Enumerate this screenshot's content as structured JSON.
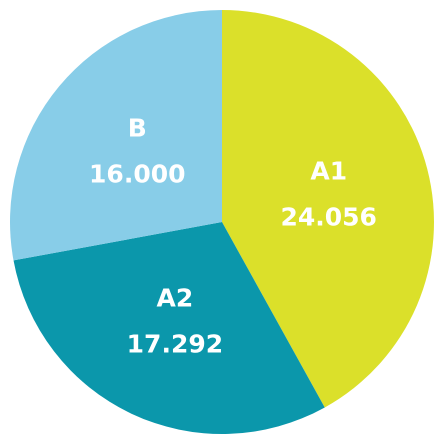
{
  "chart_data": {
    "type": "pie",
    "categories": [
      "A1",
      "A2",
      "B"
    ],
    "values": [
      24.056,
      17.292,
      16.0
    ],
    "value_labels": [
      "24.056",
      "17.292",
      "16.000"
    ],
    "colors": [
      "#dbe02a",
      "#0b97ab",
      "#88cde8"
    ]
  }
}
